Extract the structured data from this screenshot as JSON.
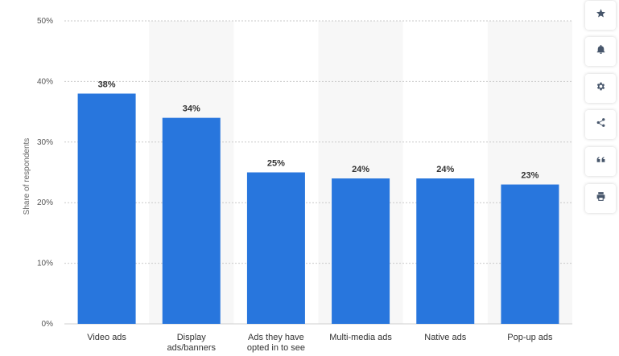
{
  "chart_data": {
    "type": "bar",
    "categories": [
      "Video ads",
      "Display ads/banners",
      "Ads they have opted in to see",
      "Multi-media ads",
      "Native ads",
      "Pop-up ads"
    ],
    "category_lines": [
      [
        "Video ads"
      ],
      [
        "Display",
        "ads/banners"
      ],
      [
        "Ads they have",
        "opted in to see"
      ],
      [
        "Multi-media ads"
      ],
      [
        "Native ads"
      ],
      [
        "Pop-up ads"
      ]
    ],
    "values": [
      38,
      34,
      25,
      24,
      24,
      23
    ],
    "value_labels": [
      "38%",
      "34%",
      "25%",
      "24%",
      "24%",
      "23%"
    ],
    "ylabel": "Share of respondents",
    "ylim": [
      0,
      50
    ],
    "yticks": [
      0,
      10,
      20,
      30,
      40,
      50
    ],
    "ytick_labels": [
      "0%",
      "10%",
      "20%",
      "30%",
      "40%",
      "50%"
    ],
    "bar_color": "#2876dd",
    "band_color": "#f7f7f7",
    "grid": true
  },
  "toolbar": {
    "buttons": [
      {
        "name": "favorite-button",
        "icon": "star-icon"
      },
      {
        "name": "notification-button",
        "icon": "bell-icon"
      },
      {
        "name": "settings-button",
        "icon": "gear-icon"
      },
      {
        "name": "share-button",
        "icon": "share-icon"
      },
      {
        "name": "cite-button",
        "icon": "quote-icon"
      },
      {
        "name": "print-button",
        "icon": "printer-icon"
      }
    ]
  }
}
